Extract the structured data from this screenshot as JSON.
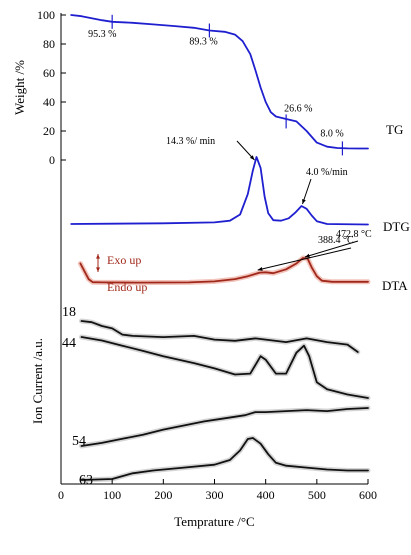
{
  "chart_data": {
    "type": "line",
    "xlabel": "Temprature /°C",
    "ylabel_top": "Weight /%",
    "ylabel_bottom": "Ion Current /a.u.",
    "xlim": [
      0,
      600
    ],
    "xticks": [
      0,
      100,
      200,
      300,
      400,
      500,
      600
    ],
    "weight_ylim": [
      0,
      100
    ],
    "weight_yticks": [
      0,
      20,
      40,
      60,
      80,
      100
    ],
    "colors": {
      "tg": "#1f1fd0",
      "dtg": "#1f1fd0",
      "dta": "#a0281a",
      "dta_glow": "#f2c4bc",
      "ms": "#111111",
      "ms_glow": "#d4d4d4"
    },
    "series": [
      {
        "name": "TG",
        "label": "TG",
        "values": [
          [
            20,
            100
          ],
          [
            40,
            99.2
          ],
          [
            60,
            97.8
          ],
          [
            80,
            96.4
          ],
          [
            100,
            95.3
          ],
          [
            140,
            94.6
          ],
          [
            180,
            93.5
          ],
          [
            220,
            92.4
          ],
          [
            260,
            91.2
          ],
          [
            290,
            89.3
          ],
          [
            320,
            88.4
          ],
          [
            340,
            86.5
          ],
          [
            355,
            82
          ],
          [
            370,
            73
          ],
          [
            380,
            62
          ],
          [
            390,
            50
          ],
          [
            400,
            40
          ],
          [
            410,
            33
          ],
          [
            420,
            30
          ],
          [
            440,
            28.3
          ],
          [
            460,
            26.6
          ],
          [
            480,
            20
          ],
          [
            500,
            12
          ],
          [
            520,
            9.2
          ],
          [
            540,
            8.3
          ],
          [
            560,
            8.0
          ],
          [
            580,
            7.9
          ],
          [
            600,
            7.9
          ]
        ]
      },
      {
        "name": "DTG",
        "label": "DTG",
        "values": [
          [
            20,
            0.2
          ],
          [
            100,
            0.28
          ],
          [
            200,
            0.36
          ],
          [
            300,
            0.55
          ],
          [
            330,
            0.9
          ],
          [
            350,
            2.2
          ],
          [
            365,
            6.5
          ],
          [
            375,
            11.5
          ],
          [
            382,
            14.3
          ],
          [
            390,
            12
          ],
          [
            398,
            6
          ],
          [
            405,
            2.5
          ],
          [
            415,
            1.0
          ],
          [
            430,
            0.9
          ],
          [
            445,
            1.4
          ],
          [
            458,
            2.6
          ],
          [
            470,
            4.0
          ],
          [
            480,
            3.4
          ],
          [
            490,
            2.0
          ],
          [
            500,
            0.8
          ],
          [
            520,
            0.2
          ],
          [
            600,
            0.1
          ]
        ]
      },
      {
        "name": "DTA",
        "label": "DTA",
        "values": [
          [
            38,
            10
          ],
          [
            46,
            6
          ],
          [
            54,
            2
          ],
          [
            62,
            0.4
          ],
          [
            80,
            0.3
          ],
          [
            150,
            0.2
          ],
          [
            250,
            0.3
          ],
          [
            300,
            0.8
          ],
          [
            340,
            2
          ],
          [
            365,
            3.5
          ],
          [
            388.4,
            5.3
          ],
          [
            400,
            5.5
          ],
          [
            415,
            5
          ],
          [
            440,
            7
          ],
          [
            460,
            10
          ],
          [
            472.8,
            12.8
          ],
          [
            482,
            12.5
          ],
          [
            490,
            8
          ],
          [
            500,
            3.5
          ],
          [
            510,
            1.2
          ],
          [
            530,
            0.6
          ],
          [
            600,
            0.6
          ]
        ]
      },
      {
        "name": "m/z 18",
        "label": "18",
        "values": [
          [
            40,
            2.1
          ],
          [
            60,
            2.0
          ],
          [
            80,
            1.7
          ],
          [
            100,
            1.5
          ],
          [
            120,
            1.0
          ],
          [
            140,
            0.9
          ],
          [
            200,
            0.8
          ],
          [
            260,
            0.9
          ],
          [
            300,
            0.6
          ],
          [
            340,
            0.5
          ],
          [
            380,
            0.7
          ],
          [
            400,
            0.6
          ],
          [
            440,
            0.4
          ],
          [
            480,
            0.7
          ],
          [
            520,
            0.4
          ],
          [
            560,
            0.2
          ],
          [
            580,
            -0.4
          ]
        ]
      },
      {
        "name": "m/z 44",
        "label": "44",
        "values": [
          [
            40,
            2.7
          ],
          [
            80,
            2.5
          ],
          [
            120,
            2.2
          ],
          [
            160,
            1.9
          ],
          [
            200,
            1.6
          ],
          [
            260,
            1.2
          ],
          [
            300,
            0.9
          ],
          [
            340,
            0.55
          ],
          [
            370,
            0.6
          ],
          [
            390,
            1.6
          ],
          [
            400,
            1.4
          ],
          [
            420,
            0.6
          ],
          [
            440,
            0.6
          ],
          [
            460,
            1.8
          ],
          [
            475,
            2.2
          ],
          [
            485,
            1.6
          ],
          [
            500,
            0.1
          ],
          [
            520,
            -0.3
          ],
          [
            560,
            -0.6
          ],
          [
            600,
            -0.8
          ]
        ]
      },
      {
        "name": "m/z 54",
        "label": "54",
        "values": [
          [
            40,
            0
          ],
          [
            80,
            0.3
          ],
          [
            120,
            0.7
          ],
          [
            160,
            1.1
          ],
          [
            200,
            1.6
          ],
          [
            240,
            2.0
          ],
          [
            280,
            2.4
          ],
          [
            320,
            2.7
          ],
          [
            360,
            3.0
          ],
          [
            380,
            3.3
          ],
          [
            400,
            3.3
          ],
          [
            440,
            3.4
          ],
          [
            480,
            3.5
          ],
          [
            520,
            3.4
          ],
          [
            560,
            3.6
          ],
          [
            600,
            3.7
          ]
        ]
      },
      {
        "name": "m/z 63",
        "label": "63",
        "values": [
          [
            40,
            -0.7
          ],
          [
            100,
            -0.6
          ],
          [
            140,
            0
          ],
          [
            180,
            0.3
          ],
          [
            240,
            0.6
          ],
          [
            300,
            0.9
          ],
          [
            330,
            1.4
          ],
          [
            350,
            2.4
          ],
          [
            365,
            3.6
          ],
          [
            375,
            3.7
          ],
          [
            390,
            3.1
          ],
          [
            405,
            2.0
          ],
          [
            420,
            1.1
          ],
          [
            440,
            0.8
          ],
          [
            480,
            0.6
          ],
          [
            520,
            0.4
          ],
          [
            560,
            0.3
          ],
          [
            600,
            0.3
          ]
        ]
      }
    ],
    "annotations": [
      {
        "text": "95.3 %",
        "x": 100,
        "y": 95.3
      },
      {
        "text": "89.3 %",
        "x": 290,
        "y": 89.3
      },
      {
        "text": "26.6 %",
        "x": 440,
        "y": 26.6
      },
      {
        "text": "8.0 %",
        "x": 550,
        "y": 8.0
      },
      {
        "text": "14.3 %/ min",
        "x": 382,
        "y": 14.3
      },
      {
        "text": "4.0 %/min",
        "x": 470,
        "y": 4.0
      },
      {
        "text": "388.4 °C",
        "x": 388.4
      },
      {
        "text": "472.8 °C",
        "x": 472.8
      },
      {
        "text": "Exo up"
      },
      {
        "text": "Endo up"
      }
    ]
  }
}
